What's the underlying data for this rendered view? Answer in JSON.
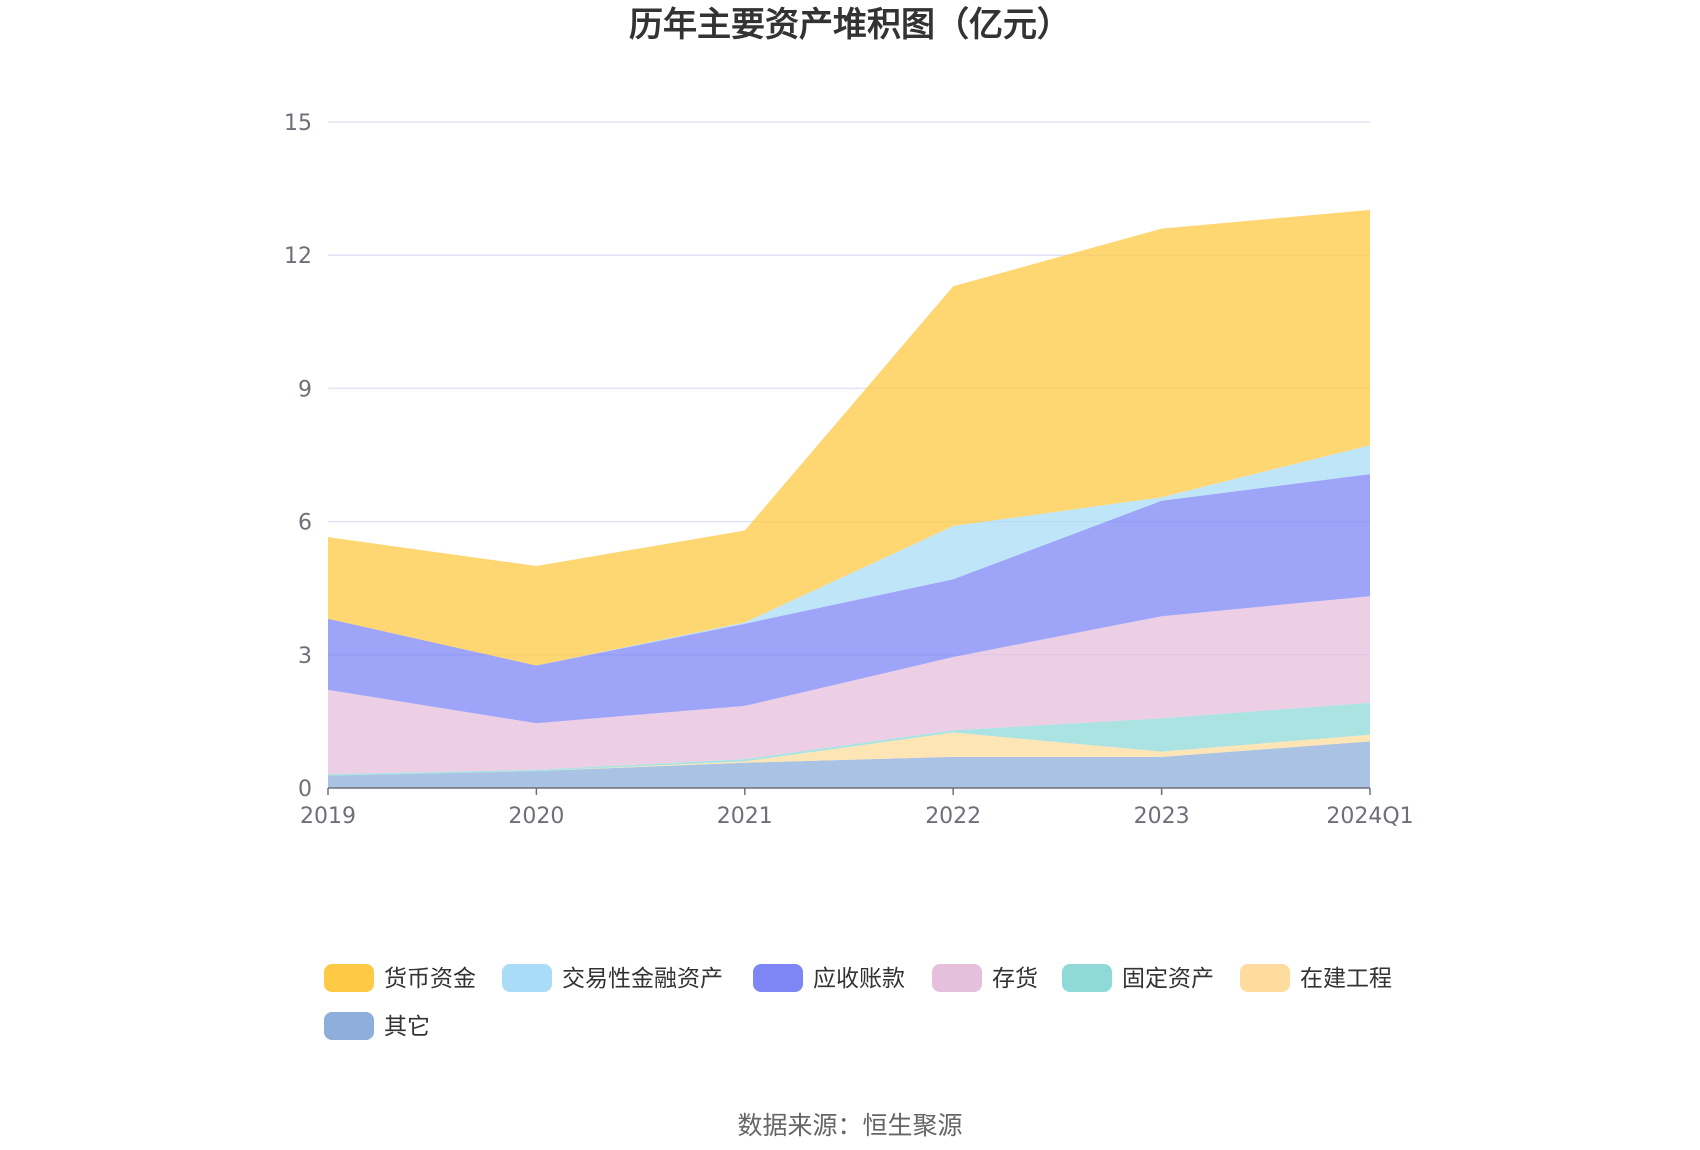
{
  "chart_data": {
    "type": "area",
    "stacked": true,
    "title": "历年主要资产堆积图（亿元）",
    "categories": [
      "2019",
      "2020",
      "2021",
      "2022",
      "2023",
      "2024Q1"
    ],
    "y_ticks": [
      "0",
      "3",
      "6",
      "9",
      "12",
      "15"
    ],
    "ylim": [
      0,
      15
    ],
    "grid": true,
    "legend_position": "bottom",
    "series": [
      {
        "name": "其它",
        "color": "#8eaedb",
        "values": [
          0.28,
          0.38,
          0.57,
          0.7,
          0.7,
          1.05
        ]
      },
      {
        "name": "在建工程",
        "color": "#fddc9e",
        "values": [
          0.0,
          0.0,
          0.03,
          0.55,
          0.12,
          0.15
        ]
      },
      {
        "name": "固定资产",
        "color": "#8fdad9",
        "values": [
          0.03,
          0.03,
          0.05,
          0.05,
          0.75,
          0.72
        ]
      },
      {
        "name": "存货",
        "color": "#e6bfdc",
        "values": [
          1.9,
          1.05,
          1.2,
          1.65,
          2.3,
          2.4
        ]
      },
      {
        "name": "应收账款",
        "color": "#7e86f5",
        "values": [
          1.6,
          1.3,
          1.85,
          1.75,
          2.6,
          2.75
        ]
      },
      {
        "name": "交易性金融资产",
        "color": "#aadcf7",
        "values": [
          0.0,
          0.0,
          0.03,
          1.2,
          0.08,
          0.65
        ]
      },
      {
        "name": "货币资金",
        "color": "#fec944",
        "values": [
          1.84,
          2.24,
          2.07,
          5.4,
          6.05,
          5.3
        ]
      }
    ],
    "legend_order": [
      "货币资金",
      "交易性金融资产",
      "应收账款",
      "存货",
      "固定资产",
      "在建工程",
      "其它"
    ]
  },
  "source_label": "数据来源：恒生聚源"
}
